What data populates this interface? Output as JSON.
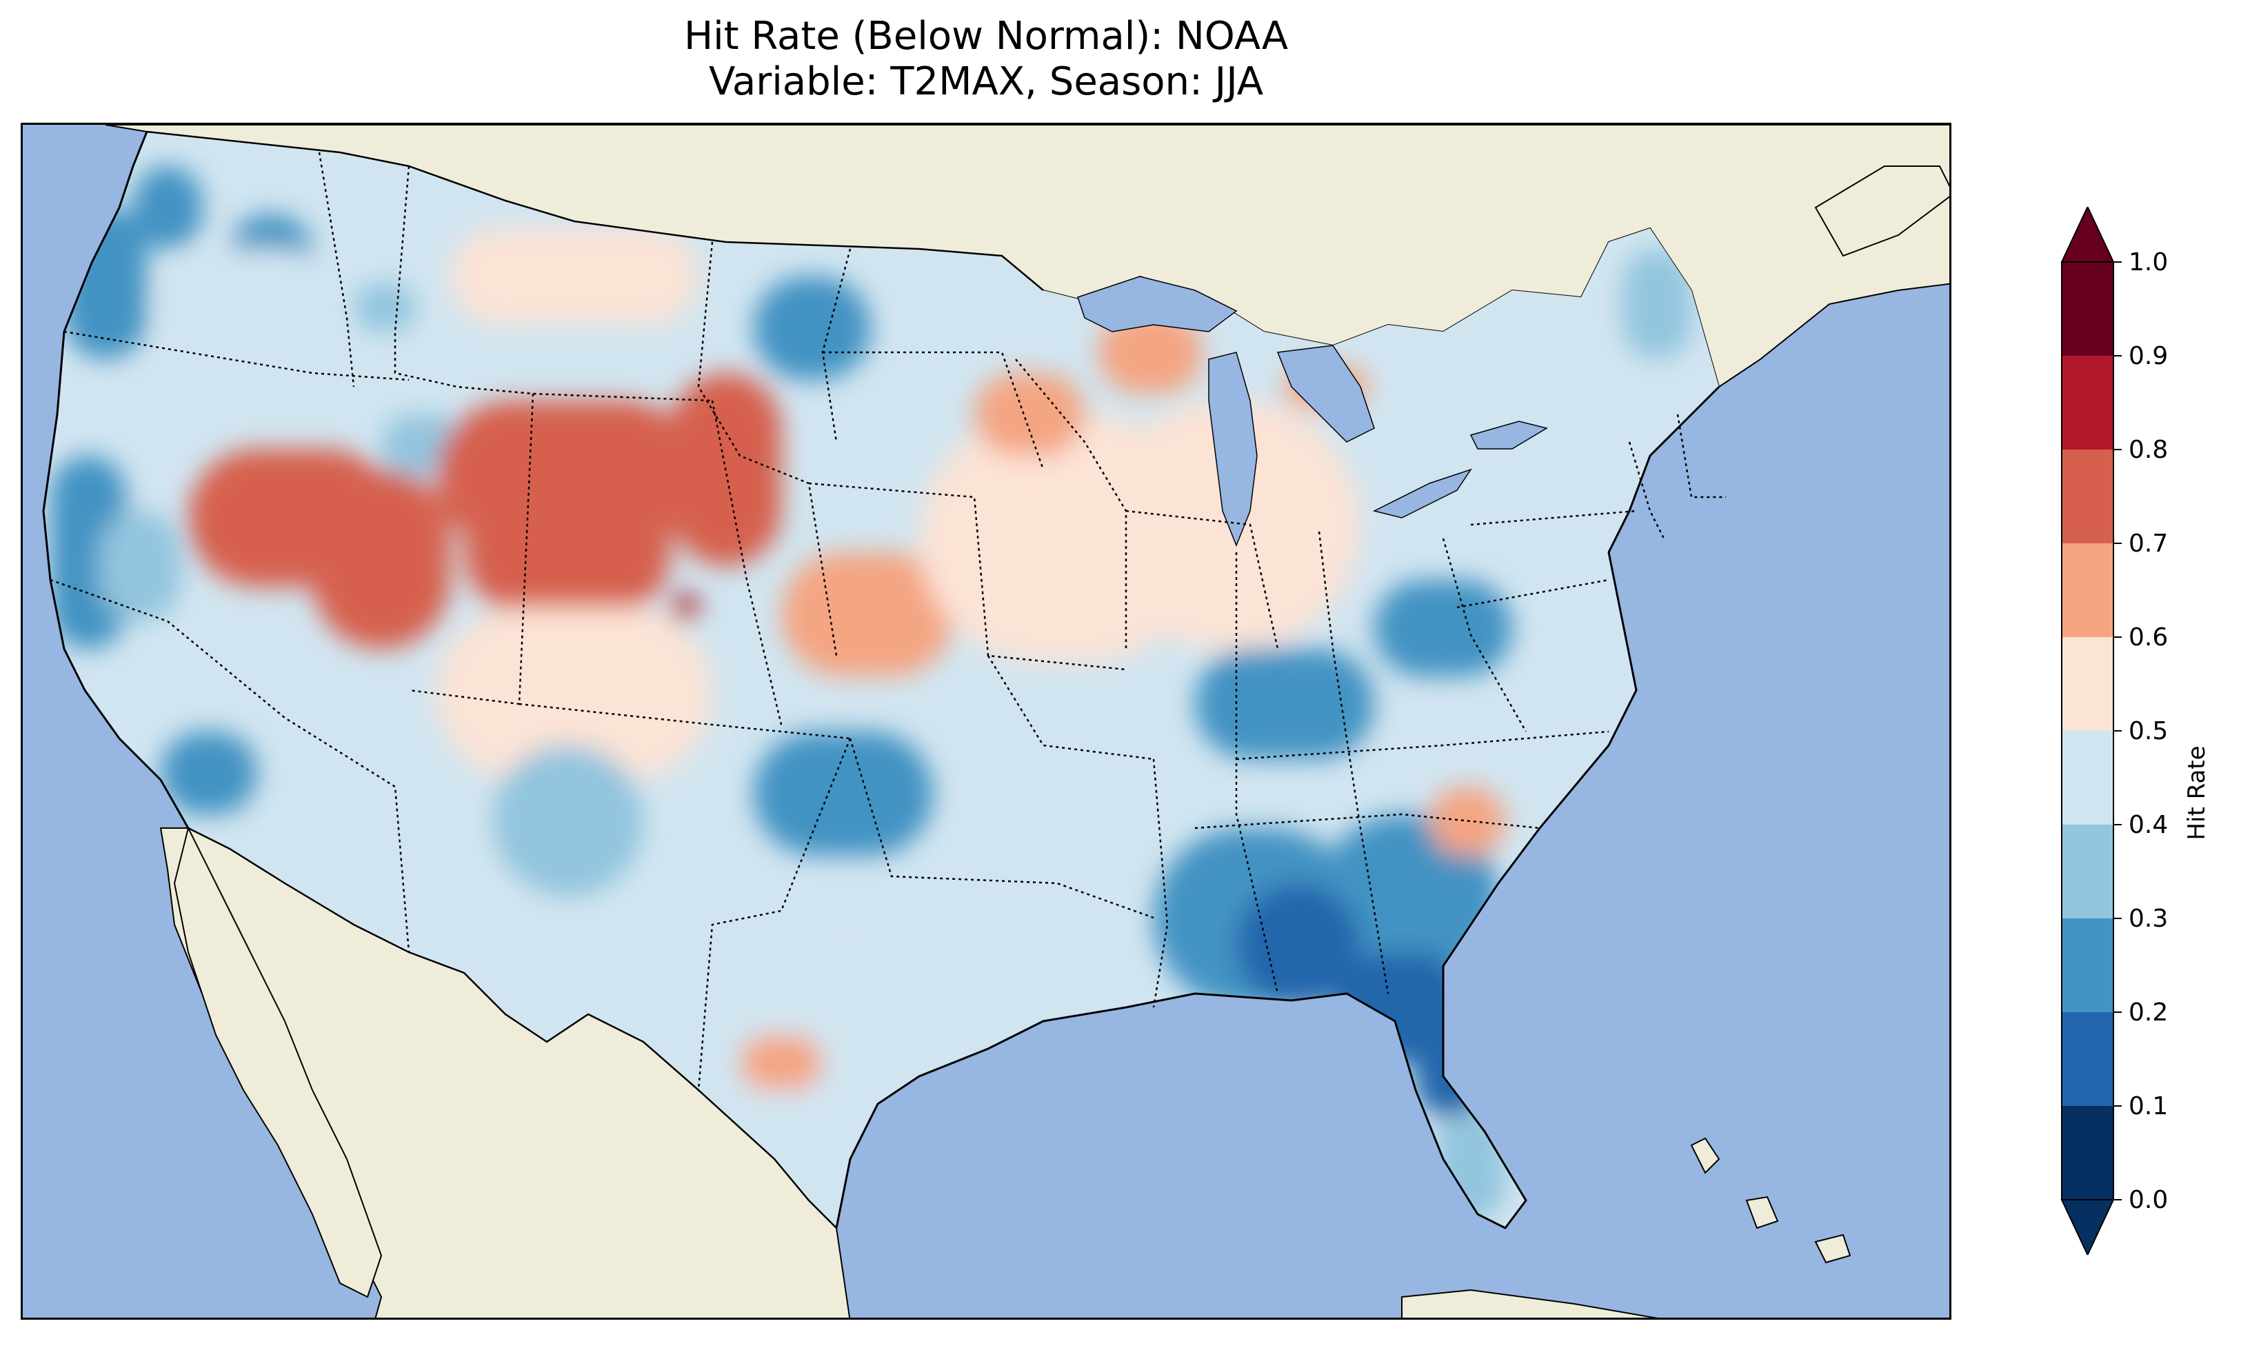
{
  "title": {
    "line1": "Hit Rate (Below Normal): NOAA",
    "line2": "Variable: T2MAX, Season: JJA"
  },
  "map": {
    "ocean_color": "#97b6e1",
    "land_color": "#efedda",
    "lake_color": "#97b6e1",
    "regions": [
      {
        "name": "pacific-northwest-coast",
        "value": 0.25
      },
      {
        "name": "northern-idaho",
        "value": 0.35
      },
      {
        "name": "montana-east",
        "value": 0.55
      },
      {
        "name": "north-dakota-center",
        "value": 0.25
      },
      {
        "name": "oregon-interior",
        "value": 0.42
      },
      {
        "name": "california-coast",
        "value": 0.25
      },
      {
        "name": "central-california",
        "value": 0.35
      },
      {
        "name": "nevada-great-basin",
        "value": 0.72
      },
      {
        "name": "utah-colorado-high",
        "value": 0.74
      },
      {
        "name": "wyoming-east",
        "value": 0.7
      },
      {
        "name": "kansas-center",
        "value": 0.68
      },
      {
        "name": "central-plains",
        "value": 0.55
      },
      {
        "name": "southwest-desert",
        "value": 0.45
      },
      {
        "name": "new-mexico-texas-panhandle",
        "value": 0.36
      },
      {
        "name": "oklahoma-east",
        "value": 0.25
      },
      {
        "name": "texas-south",
        "value": 0.45
      },
      {
        "name": "texas-hill-country",
        "value": 0.62
      },
      {
        "name": "midwest",
        "value": 0.52
      },
      {
        "name": "ohio-valley",
        "value": 0.25
      },
      {
        "name": "southeast",
        "value": 0.22
      },
      {
        "name": "alabama-georgia-core",
        "value": 0.15
      },
      {
        "name": "north-florida",
        "value": 0.12
      },
      {
        "name": "south-florida",
        "value": 0.3
      },
      {
        "name": "south-carolina-pocket",
        "value": 0.65
      },
      {
        "name": "northeast",
        "value": 0.45
      },
      {
        "name": "maine",
        "value": 0.3
      },
      {
        "name": "michigan-upper",
        "value": 0.62
      },
      {
        "name": "minnesota-wisconsin",
        "value": 0.66
      },
      {
        "name": "colorado-peak",
        "value": 0.86
      }
    ]
  },
  "colorbar": {
    "label": "Hit Rate",
    "ticks": [
      "0.0",
      "0.1",
      "0.2",
      "0.3",
      "0.4",
      "0.5",
      "0.6",
      "0.7",
      "0.8",
      "0.9",
      "1.0"
    ],
    "colors": [
      "#053061",
      "#2166ac",
      "#4393c3",
      "#92c5de",
      "#d1e5f0",
      "#fbe3d6",
      "#f4a582",
      "#d6604d",
      "#b2182b",
      "#67001f"
    ],
    "under_color": "#053061",
    "over_color": "#67001f"
  }
}
